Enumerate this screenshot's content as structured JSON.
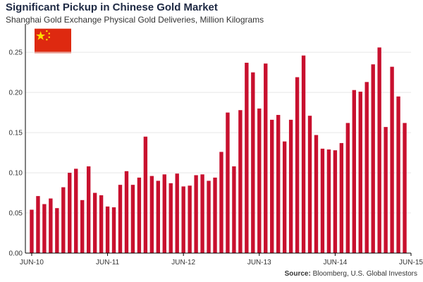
{
  "header": {
    "title": "Significant Pickup in Chinese Gold Market",
    "subtitle": "Shanghai Gold Exchange Physical Gold Deliveries, Million Kilograms"
  },
  "flag": {
    "country": "China",
    "icon": "china-flag-icon",
    "red": "#de2910",
    "yellow": "#ffde00"
  },
  "footer": {
    "source_label": "Source:",
    "source_text": "Bloomberg, U.S. Global Investors"
  },
  "colors": {
    "bar": "#c8102e",
    "axis": "#000000",
    "grid": "#e8e8e8"
  },
  "chart_data": {
    "type": "bar",
    "title": "Significant Pickup in Chinese Gold Market",
    "subtitle": "Shanghai Gold Exchange Physical Gold Deliveries, Million Kilograms",
    "xlabel": "",
    "ylabel": "",
    "ylim": [
      0,
      0.28
    ],
    "y_ticks": [
      "0.00",
      "0.05",
      "0.10",
      "0.15",
      "0.20",
      "0.25"
    ],
    "y_tick_values": [
      0,
      0.05,
      0.1,
      0.15,
      0.2,
      0.25
    ],
    "x_tick_labels": [
      "JUN-10",
      "JUN-11",
      "JUN-12",
      "JUN-13",
      "JUN-14",
      "JUN-15"
    ],
    "x_tick_indices": [
      0,
      12,
      24,
      36,
      48,
      60
    ],
    "grid": true,
    "legend": "none",
    "series": [
      {
        "name": "Physical Gold Deliveries",
        "values": [
          0.054,
          0.071,
          0.061,
          0.068,
          0.056,
          0.082,
          0.1,
          0.105,
          0.066,
          0.108,
          0.075,
          0.072,
          0.058,
          0.057,
          0.085,
          0.102,
          0.085,
          0.094,
          0.145,
          0.096,
          0.09,
          0.098,
          0.087,
          0.099,
          0.083,
          0.084,
          0.097,
          0.098,
          0.09,
          0.094,
          0.126,
          0.175,
          0.108,
          0.178,
          0.237,
          0.225,
          0.18,
          0.236,
          0.166,
          0.172,
          0.139,
          0.166,
          0.219,
          0.246,
          0.171,
          0.147,
          0.13,
          0.129,
          0.128,
          0.137,
          0.162,
          0.203,
          0.201,
          0.213,
          0.235,
          0.256,
          0.157,
          0.232,
          0.195,
          0.162
        ]
      }
    ]
  }
}
